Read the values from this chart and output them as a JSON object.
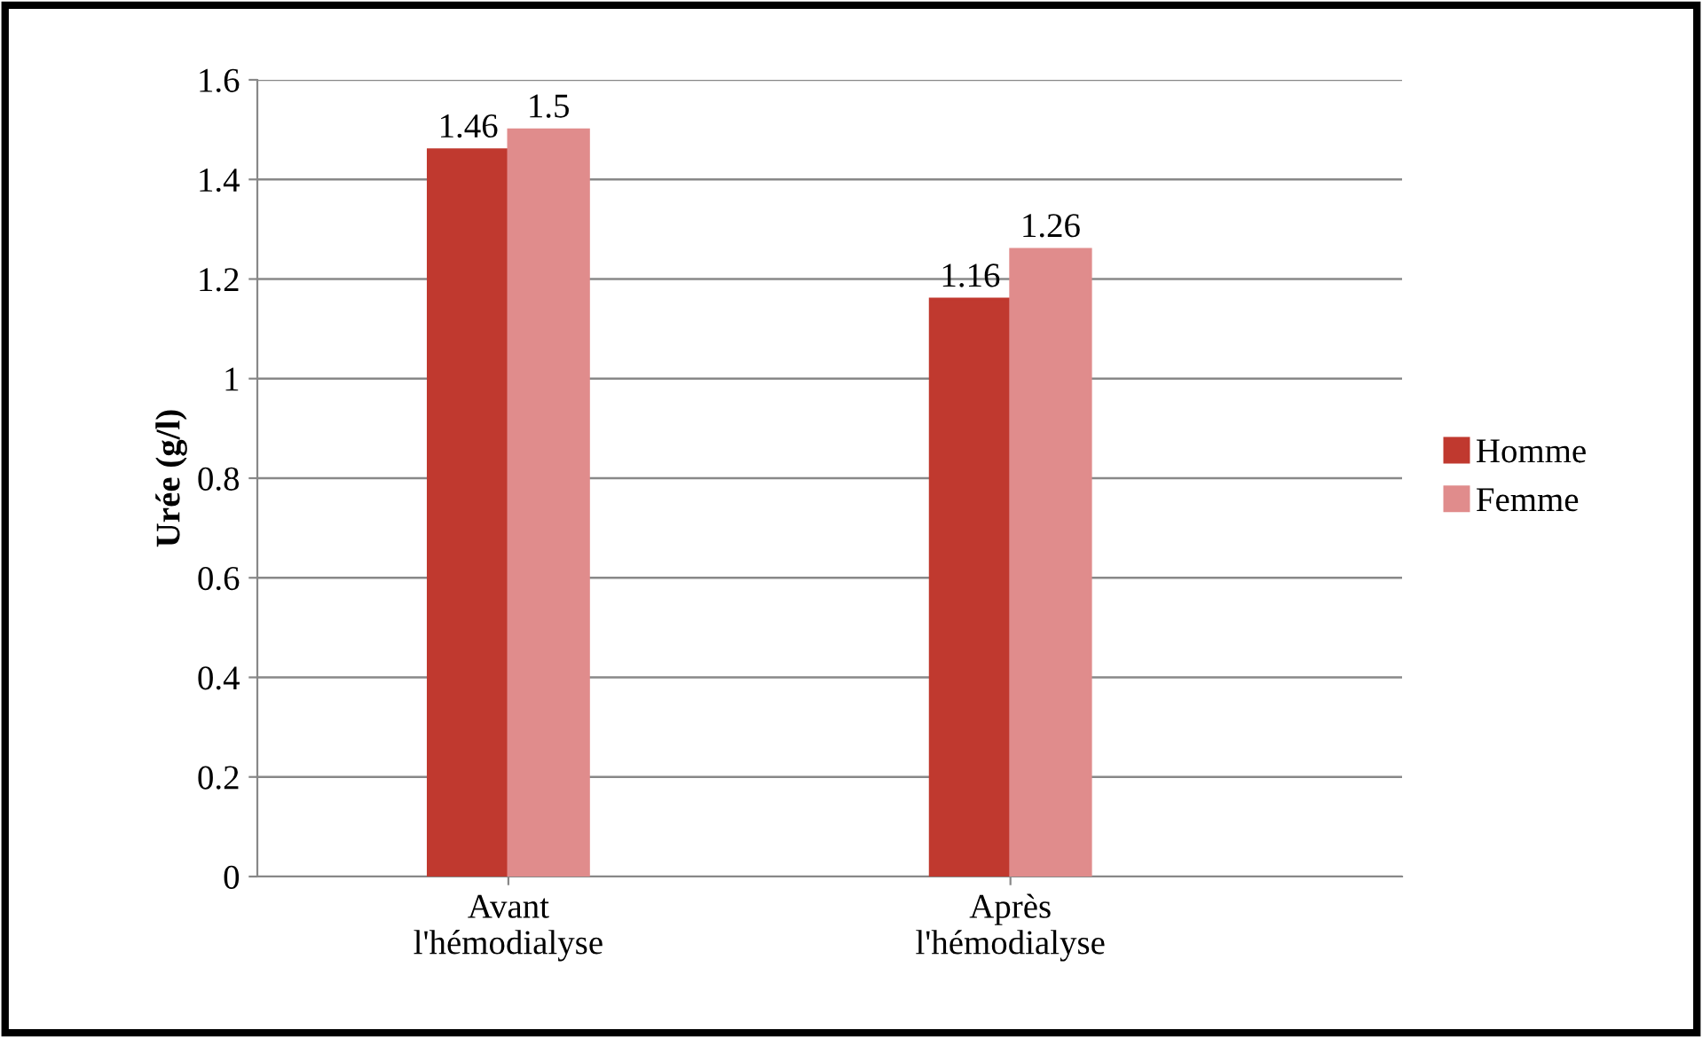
{
  "chart_data": {
    "type": "bar",
    "ylabel": "Urée (g/l)",
    "categories": [
      "Avant\nl'hémodialyse",
      "Après\nl'hémodialyse"
    ],
    "series": [
      {
        "name": "Homme",
        "color": "#c0392f",
        "values": [
          1.46,
          1.16
        ]
      },
      {
        "name": "Femme",
        "color": "#e08c8c",
        "values": [
          1.5,
          1.26
        ]
      }
    ],
    "ylim": [
      0,
      1.6
    ],
    "yticks": [
      0,
      0.2,
      0.4,
      0.6,
      0.8,
      1,
      1.2,
      1.4,
      1.6
    ],
    "grid": "y",
    "legend": "right",
    "data_labels": true
  }
}
